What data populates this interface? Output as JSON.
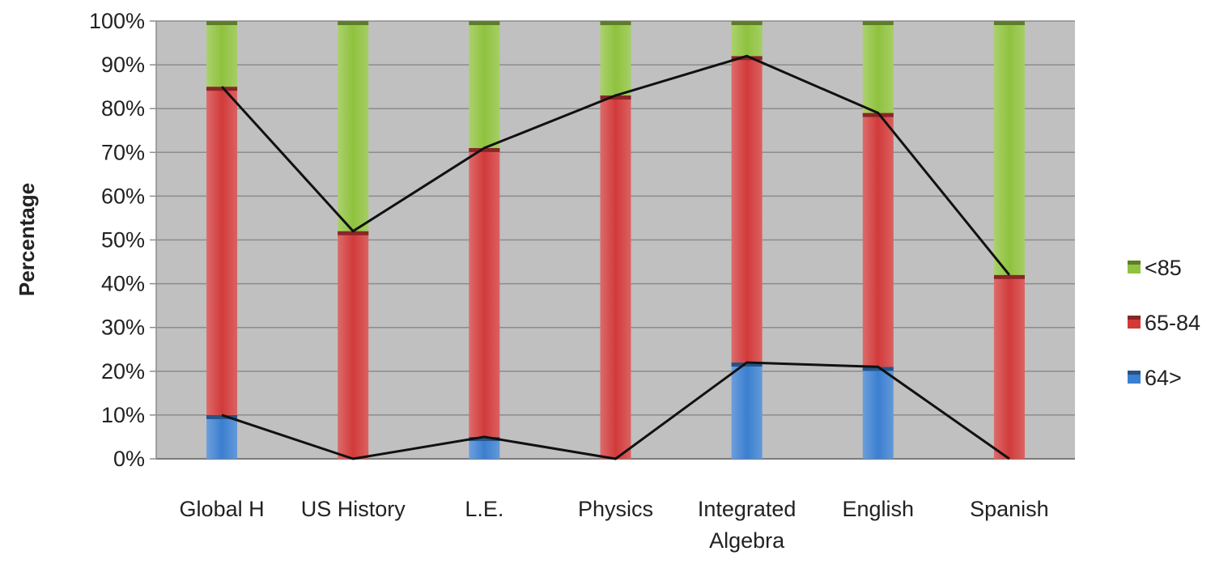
{
  "chart_data": {
    "type": "bar",
    "stacked": true,
    "percent_stacked": true,
    "categories": [
      "Global H",
      "US History",
      "L.E.",
      "Physics",
      "Integrated Algebra",
      "English",
      "Spanish"
    ],
    "category_labels": [
      [
        "Global H"
      ],
      [
        "US History"
      ],
      [
        "L.E."
      ],
      [
        "Physics"
      ],
      [
        "Integrated",
        "Algebra"
      ],
      [
        "English"
      ],
      [
        "Spanish"
      ]
    ],
    "series": [
      {
        "name": "64>",
        "values": [
          10,
          0,
          5,
          0,
          22,
          21,
          0
        ],
        "color": "#3b7fd0"
      },
      {
        "name": "65-84",
        "values": [
          75,
          52,
          66,
          83,
          70,
          58,
          42
        ],
        "color": "#d23a3a"
      },
      {
        "name": "<85",
        "values": [
          15,
          48,
          29,
          17,
          8,
          21,
          58
        ],
        "color": "#8fc23e"
      }
    ],
    "legend_order": [
      "<85",
      "65-84",
      "64>"
    ],
    "legend_position": "right",
    "ylabel": "Percentage",
    "xlabel": "",
    "ylim": [
      0,
      100
    ],
    "y_ticks": [
      0,
      10,
      20,
      30,
      40,
      50,
      60,
      70,
      80,
      90,
      100
    ],
    "y_tick_labels": [
      "0%",
      "10%",
      "20%",
      "30%",
      "40%",
      "50%",
      "60%",
      "70%",
      "80%",
      "90%",
      "100%"
    ],
    "grid": true,
    "plot_background": "#c0c0c0",
    "series_lines": {
      "color": "#111111",
      "connects": "top of each series segment across categories"
    }
  }
}
